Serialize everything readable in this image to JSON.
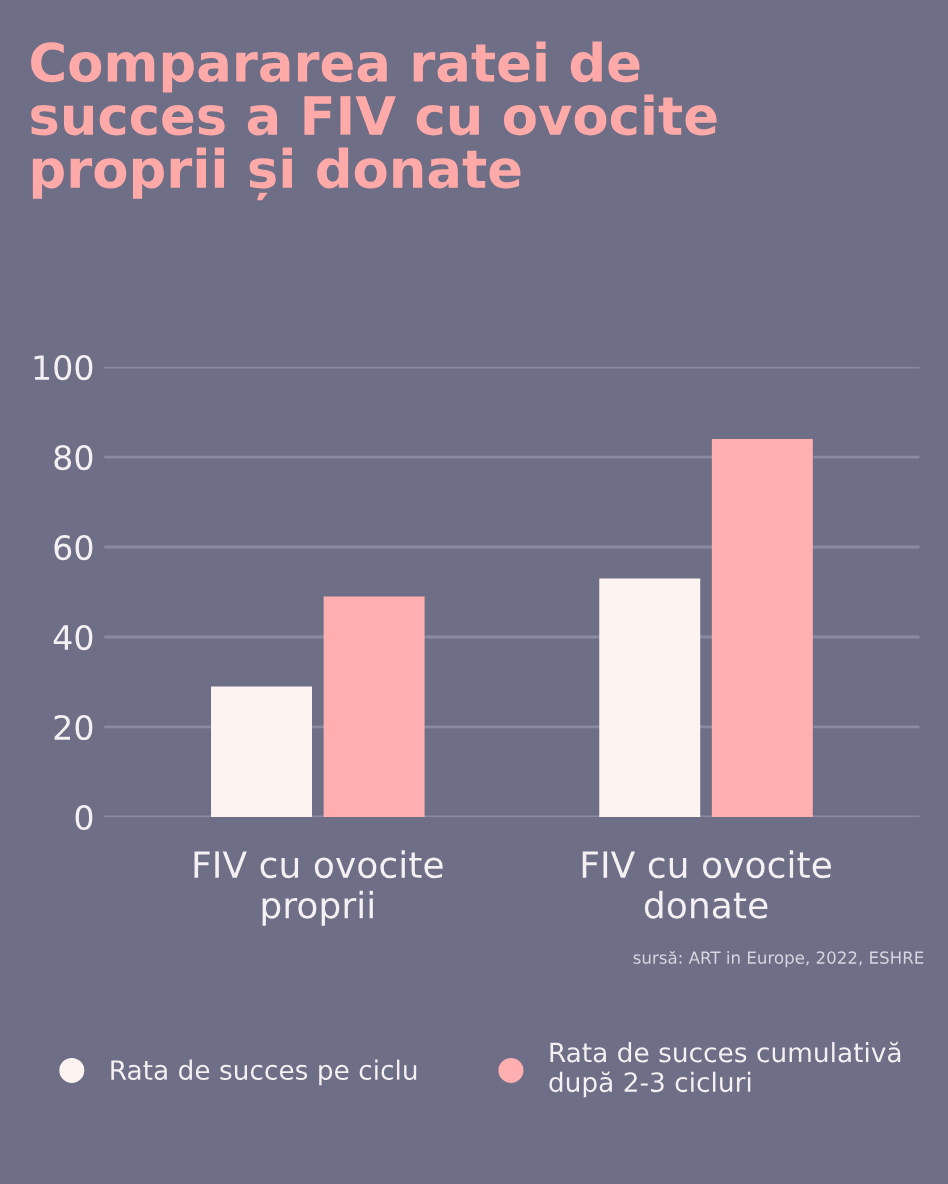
{
  "chart_data": {
    "type": "bar",
    "title": "Compararea ratei de\nsucces a FIV cu ovocite\nproprii și donate",
    "categories": [
      "FIV cu ovocite\nproprii",
      "FIV cu ovocite\ndonate"
    ],
    "series": [
      {
        "name": "Rata de succes pe ciclu",
        "color": "#fdf4f2",
        "values": [
          29,
          53
        ]
      },
      {
        "name": "Rata de succes cumulativă\ndupă 2-3 cicluri",
        "color": "#ffafb0",
        "values": [
          49,
          84
        ]
      }
    ],
    "ylim": [
      0,
      100
    ],
    "yticks": [
      0,
      20,
      40,
      60,
      80,
      100
    ],
    "grid": "y",
    "legend": "bottom",
    "annotations": [
      "sursă: ART in Europe, 2022, ESHRE"
    ]
  }
}
